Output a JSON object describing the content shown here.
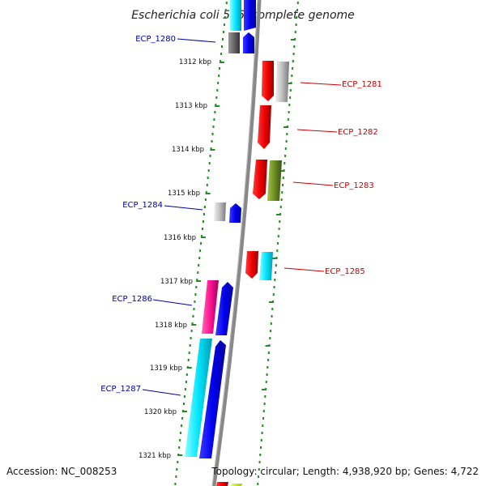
{
  "title": "Escherichia coli 536, complete genome",
  "footer": {
    "accession": "Accession: NC_008253",
    "topology": "Topology: circular; Length: 4,938,920 bp; Genes: 4,722"
  },
  "colors": {
    "left_label": "#0000aa",
    "right_label": "#cc0000",
    "tick_green": "#228b22",
    "backbone": "#888888"
  },
  "kbp_ticks": [
    "1312 kbp",
    "1313 kbp",
    "1314 kbp",
    "1315 kbp",
    "1316 kbp",
    "1317 kbp",
    "1318 kbp",
    "1319 kbp",
    "1320 kbp",
    "1321 kbp"
  ],
  "gene_labels_left": [
    "ECP_1280",
    "ECP_1284",
    "ECP_1286",
    "ECP_1287"
  ],
  "gene_labels_right": [
    "ECP_1281",
    "ECP_1282",
    "ECP_1283",
    "ECP_1285"
  ]
}
